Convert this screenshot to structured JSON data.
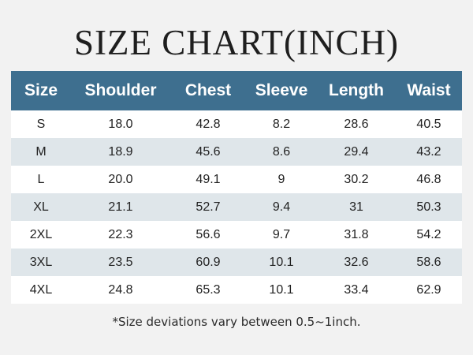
{
  "title": "SIZE CHART(INCH)",
  "columns": [
    "Size",
    "Shoulder",
    "Chest",
    "Sleeve",
    "Length",
    "Waist"
  ],
  "rows": [
    [
      "S",
      "18.0",
      "42.8",
      "8.2",
      "28.6",
      "40.5"
    ],
    [
      "M",
      "18.9",
      "45.6",
      "8.6",
      "29.4",
      "43.2"
    ],
    [
      "L",
      "20.0",
      "49.1",
      "9",
      "30.2",
      "46.8"
    ],
    [
      "XL",
      "21.1",
      "52.7",
      "9.4",
      "31",
      "50.3"
    ],
    [
      "2XL",
      "22.3",
      "56.6",
      "9.7",
      "31.8",
      "54.2"
    ],
    [
      "3XL",
      "23.5",
      "60.9",
      "10.1",
      "32.6",
      "58.6"
    ],
    [
      "4XL",
      "24.8",
      "65.3",
      "10.1",
      "33.4",
      "62.9"
    ]
  ],
  "note": "*Size deviations vary between 0.5~1inch.",
  "colors": {
    "header_bg": "#3e6f8f",
    "row_alt_bg": "#dfe6ea",
    "row_bg": "#ffffff",
    "page_bg": "#f2f2f2"
  }
}
